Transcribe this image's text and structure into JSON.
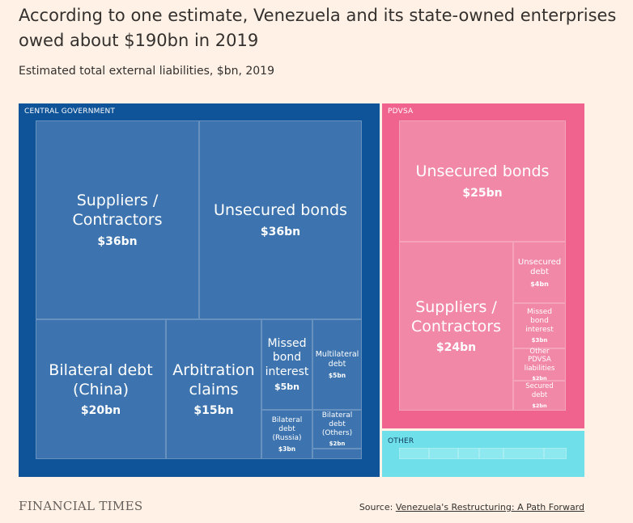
{
  "header": {
    "title": "According to one estimate, Venezuela and its state-owned enterprises owed about $190bn in 2019",
    "subtitle": "Estimated total external liabilities, $bn, 2019"
  },
  "footer": {
    "logo": "FINANCIAL TIMES",
    "source_prefix": "Source: ",
    "source_link": "Venezuela's Restructuring: A Path Forward"
  },
  "colors": {
    "background": "#fff1e5",
    "central_government": "#0f5499",
    "central_government_cell": "#3d74af",
    "pdvsa": "#f0638f",
    "pdvsa_cell": "#f288a8",
    "other": "#6fdfe9",
    "other_cell": "#8ee8ef"
  },
  "chart_data": {
    "type": "treemap",
    "title": "Estimated total external liabilities, $bn, 2019",
    "unit": "$bn",
    "groups": [
      {
        "name": "CENTRAL GOVERNMENT",
        "items": [
          {
            "name": "Suppliers / Contractors",
            "value": 36,
            "label": "$36bn"
          },
          {
            "name": "Unsecured bonds",
            "value": 36,
            "label": "$36bn"
          },
          {
            "name": "Bilateral debt (China)",
            "value": 20,
            "label": "$20bn"
          },
          {
            "name": "Arbitration claims",
            "value": 15,
            "label": "$15bn"
          },
          {
            "name": "Missed bond interest",
            "value": 5,
            "label": "$5bn"
          },
          {
            "name": "Multilateral debt",
            "value": 5,
            "label": "$5bn"
          },
          {
            "name": "Bilateral debt (Russia)",
            "value": 3,
            "label": "$3bn"
          },
          {
            "name": "Bilateral debt (Others)",
            "value": 2,
            "label": "$2bn"
          },
          {
            "name": "",
            "value": 1,
            "label": ""
          }
        ]
      },
      {
        "name": "PDVSA",
        "items": [
          {
            "name": "Unsecured bonds",
            "value": 25,
            "label": "$25bn"
          },
          {
            "name": "Suppliers / Contractors",
            "value": 24,
            "label": "$24bn"
          },
          {
            "name": "Unsecured debt",
            "value": 4,
            "label": "$4bn"
          },
          {
            "name": "Missed bond interest",
            "value": 3,
            "label": "$3bn"
          },
          {
            "name": "Other PDVSA liabilities",
            "value": 2,
            "label": "$2bn"
          },
          {
            "name": "Secured debt",
            "value": 2,
            "label": "$2bn"
          }
        ]
      },
      {
        "name": "OTHER",
        "items": [
          {
            "name": "",
            "value": 1,
            "label": ""
          },
          {
            "name": "",
            "value": 1,
            "label": ""
          },
          {
            "name": "",
            "value": 1,
            "label": ""
          },
          {
            "name": "",
            "value": 1,
            "label": ""
          },
          {
            "name": "",
            "value": 1,
            "label": ""
          },
          {
            "name": "",
            "value": 1,
            "label": ""
          }
        ]
      }
    ]
  }
}
